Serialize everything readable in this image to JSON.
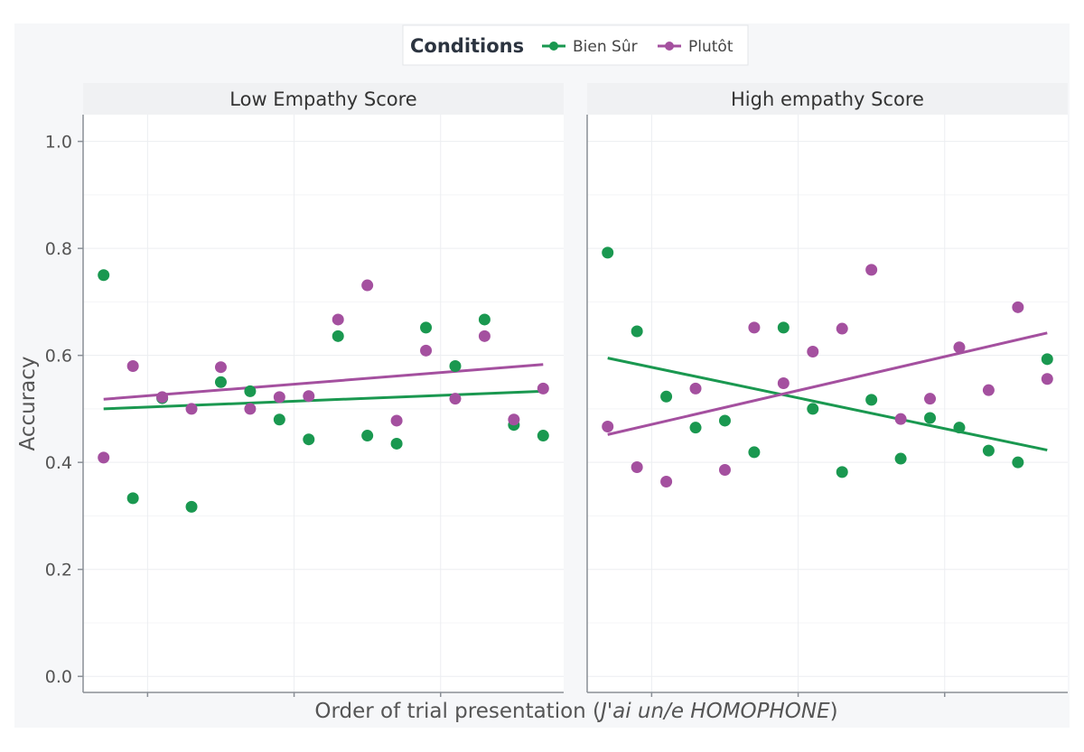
{
  "chart_data": {
    "type": "scatter",
    "legend": {
      "title": "Conditions",
      "placement": "top",
      "entries": [
        {
          "name": "Bien Sûr",
          "color": "#1a9850"
        },
        {
          "name": "Plutôt",
          "color": "#a4509f"
        }
      ]
    },
    "xlabel_prefix": "Order of trial presentation (",
    "xlabel_italic": "J'ai un/e HOMOPHONE",
    "xlabel_suffix": ")",
    "ylabel": "Accuracy",
    "ylim": [
      -0.03,
      1.05
    ],
    "yticks": [
      "0.0",
      "0.2",
      "0.4",
      "0.6",
      "0.8",
      "1.0"
    ],
    "xlim": [
      0.3,
      16.7
    ],
    "grid": true,
    "panels": [
      {
        "title": "Low Empathy Score",
        "series": [
          {
            "name": "Bien Sûr",
            "color": "#1a9850",
            "x": [
              1,
              2,
              3,
              4,
              5,
              6,
              7,
              8,
              9,
              10,
              11,
              12,
              13,
              14,
              15,
              16
            ],
            "y": [
              0.75,
              0.333,
              0.52,
              0.317,
              0.55,
              0.533,
              0.48,
              0.443,
              0.636,
              0.45,
              0.435,
              0.652,
              0.58,
              0.667,
              0.47,
              0.45
            ],
            "trend": [
              0.5,
              0.533
            ]
          },
          {
            "name": "Plutôt",
            "color": "#a4509f",
            "x": [
              1,
              2,
              3,
              4,
              5,
              6,
              7,
              8,
              9,
              10,
              11,
              12,
              13,
              14,
              15,
              16
            ],
            "y": [
              0.409,
              0.58,
              0.522,
              0.5,
              0.578,
              0.5,
              0.522,
              0.524,
              0.667,
              0.731,
              0.478,
              0.609,
              0.519,
              0.636,
              0.48,
              0.538
            ],
            "trend": [
              0.518,
              0.583
            ]
          }
        ]
      },
      {
        "title": "High empathy Score",
        "series": [
          {
            "name": "Bien Sûr",
            "color": "#1a9850",
            "x": [
              1,
              2,
              3,
              4,
              5,
              6,
              7,
              8,
              9,
              10,
              11,
              12,
              13,
              14,
              15,
              16
            ],
            "y": [
              0.792,
              0.645,
              0.523,
              0.465,
              0.478,
              0.419,
              0.652,
              0.5,
              0.382,
              0.517,
              0.407,
              0.483,
              0.465,
              0.422,
              0.4,
              0.593
            ],
            "trend": [
              0.595,
              0.423
            ]
          },
          {
            "name": "Plutôt",
            "color": "#a4509f",
            "x": [
              1,
              2,
              3,
              4,
              5,
              6,
              7,
              8,
              9,
              10,
              11,
              12,
              13,
              14,
              15,
              16
            ],
            "y": [
              0.467,
              0.391,
              0.364,
              0.538,
              0.386,
              0.652,
              0.548,
              0.607,
              0.65,
              0.76,
              0.481,
              0.519,
              0.615,
              0.535,
              0.69,
              0.556
            ],
            "trend": [
              0.452,
              0.642
            ]
          }
        ]
      }
    ]
  }
}
